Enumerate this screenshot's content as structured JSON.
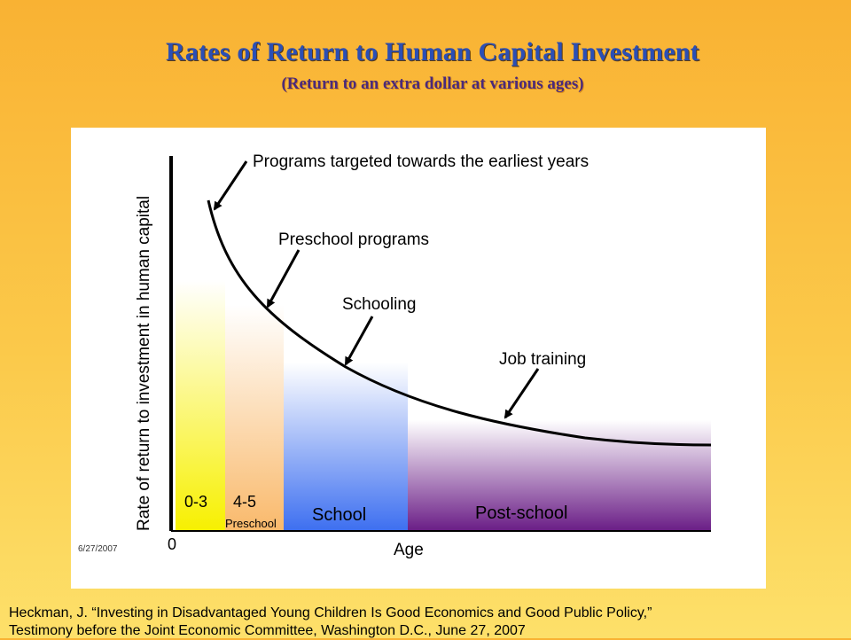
{
  "title": "Rates of Return to Human Capital Investment",
  "subtitle": "(Return to an extra dollar at various ages)",
  "chart": {
    "date_stamp": "6/27/2007",
    "ylabel": "Rate of return to investment in human capital",
    "xlabel": "Age",
    "origin_label": "0",
    "stages": [
      {
        "label": "0-3",
        "sublabel": ""
      },
      {
        "label": "4-5",
        "sublabel": "Preschool"
      },
      {
        "label": "School",
        "sublabel": ""
      },
      {
        "label": "Post-school",
        "sublabel": ""
      }
    ],
    "annotations": [
      "Programs targeted towards the earliest years",
      "Preschool programs",
      "Schooling",
      "Job training"
    ],
    "colors": {
      "stage_0_3": "#f7f000",
      "stage_4_5": "#f9b96b",
      "stage_school": "#3d6ff0",
      "stage_postschool": "#6a1d86",
      "curve": "#000000"
    }
  },
  "citation": {
    "line1": "Heckman, J. “Investing in Disadvantaged Young Children Is Good Economics and Good Public Policy,”",
    "line2": "Testimony before the Joint Economic Committee, Washington D.C., June 27, 2007"
  }
}
